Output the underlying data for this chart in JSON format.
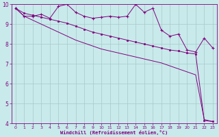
{
  "xlabel": "Windchill (Refroidissement éolien,°C)",
  "background_color": "#c8eaea",
  "line_color": "#800080",
  "grid_color": "#a8c8c8",
  "xlim": [
    -0.5,
    23.5
  ],
  "ylim": [
    4,
    10
  ],
  "yticks": [
    4,
    5,
    6,
    7,
    8,
    9,
    10
  ],
  "xticks": [
    0,
    1,
    2,
    3,
    4,
    5,
    6,
    7,
    8,
    9,
    10,
    11,
    12,
    13,
    14,
    15,
    16,
    17,
    18,
    19,
    20,
    21,
    22,
    23
  ],
  "series1_x": [
    0,
    1,
    2,
    3,
    4,
    5,
    6,
    7,
    8,
    9,
    10,
    11,
    12,
    13,
    14,
    15,
    16,
    17,
    18,
    19,
    20,
    21,
    22,
    23
  ],
  "series1_y": [
    9.8,
    9.4,
    9.4,
    9.5,
    9.3,
    9.9,
    10.0,
    9.6,
    9.4,
    9.3,
    9.35,
    9.4,
    9.35,
    9.4,
    10.0,
    9.6,
    9.8,
    8.7,
    8.4,
    8.5,
    7.7,
    7.6,
    8.3,
    7.8
  ],
  "series2_x": [
    0,
    1,
    2,
    3,
    4,
    5,
    6,
    7,
    8,
    9,
    10,
    11,
    12,
    13,
    14,
    15,
    16,
    17,
    18,
    19,
    20,
    21,
    22,
    23
  ],
  "series2_y": [
    9.8,
    9.55,
    9.45,
    9.35,
    9.25,
    9.15,
    9.05,
    8.9,
    8.75,
    8.6,
    8.5,
    8.4,
    8.3,
    8.2,
    8.1,
    8.0,
    7.9,
    7.8,
    7.7,
    7.65,
    7.55,
    7.5,
    4.15,
    4.1
  ],
  "series3_x": [
    0,
    1,
    2,
    3,
    4,
    5,
    6,
    7,
    8,
    9,
    10,
    11,
    12,
    13,
    14,
    15,
    16,
    17,
    18,
    19,
    20,
    21,
    22,
    23
  ],
  "series3_y": [
    9.8,
    9.4,
    9.2,
    9.0,
    8.8,
    8.6,
    8.4,
    8.2,
    8.05,
    7.9,
    7.75,
    7.65,
    7.55,
    7.45,
    7.35,
    7.25,
    7.15,
    7.05,
    6.9,
    6.75,
    6.6,
    6.45,
    4.2,
    4.1
  ]
}
